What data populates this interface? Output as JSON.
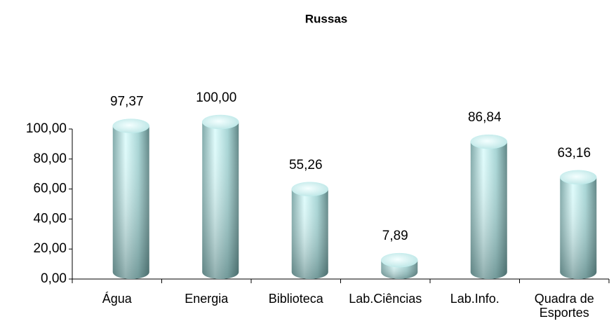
{
  "chart_data": {
    "type": "bar",
    "title": "Russas",
    "categories": [
      "Água",
      "Energia",
      "Biblioteca",
      "Lab.Ciências",
      "Lab.Info.",
      "Quadra de Esportes"
    ],
    "values": [
      97.37,
      100.0,
      55.26,
      7.89,
      86.84,
      63.16
    ],
    "value_labels": [
      "97,37",
      "100,00",
      "55,26",
      "7,89",
      "86,84",
      "63,16"
    ],
    "color": "#bfeeee",
    "ylim": [
      0,
      100
    ],
    "yticks": [
      {
        "value": 0,
        "label": "0,00"
      },
      {
        "value": 20,
        "label": "20,00"
      },
      {
        "value": 40,
        "label": "40,00"
      },
      {
        "value": 60,
        "label": "60,00"
      },
      {
        "value": 80,
        "label": "80,00"
      },
      {
        "value": 100,
        "label": "100,00"
      }
    ],
    "grid": false
  }
}
